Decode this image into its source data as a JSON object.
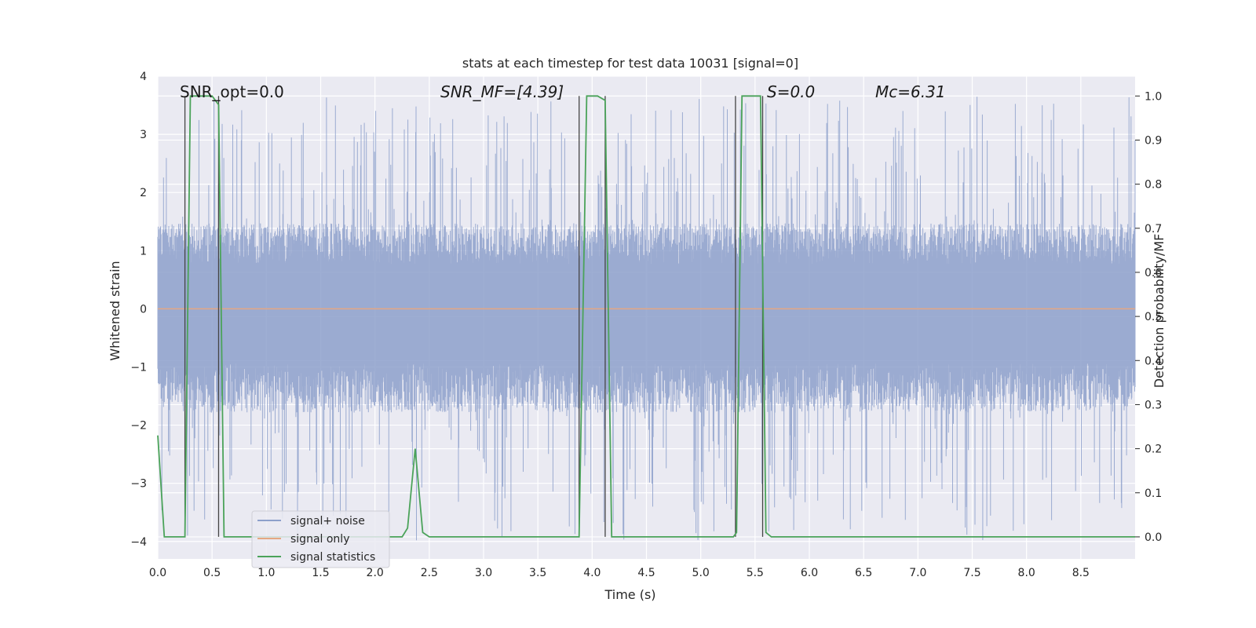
{
  "chart_data": {
    "type": "line",
    "title": "stats at each timestep for test data 10031 [signal=0]",
    "xlabel": "Time (s)",
    "ylabel_left": "Whitened strain",
    "ylabel_right": "Detection probability/MF",
    "xlim": [
      0,
      9.0
    ],
    "ylim_left": [
      -4.3,
      4.0
    ],
    "ylim_right": [
      -0.05,
      1.045
    ],
    "x_ticks": [
      0.0,
      0.5,
      1.0,
      1.5,
      2.0,
      2.5,
      3.0,
      3.5,
      4.0,
      4.5,
      5.0,
      5.5,
      6.0,
      6.5,
      7.0,
      7.5,
      8.0,
      8.5
    ],
    "x_tick_labels": [
      "0.0",
      "0.5",
      "1.0",
      "1.5",
      "2.0",
      "2.5",
      "3.0",
      "3.5",
      "4.0",
      "4.5",
      "5.0",
      "5.5",
      "6.0",
      "6.5",
      "7.0",
      "7.5",
      "8.0",
      "8.5"
    ],
    "y_left_ticks": [
      4,
      3,
      2,
      1,
      0,
      -1,
      -2,
      -3,
      -4
    ],
    "y_left_tick_labels": [
      "4",
      "3",
      "2",
      "1",
      "0",
      "−1",
      "−2",
      "−3",
      "−4"
    ],
    "y_right_ticks": [
      1.0,
      0.9,
      0.8,
      0.7,
      0.6,
      0.5,
      0.4,
      0.3,
      0.2,
      0.1,
      0.0
    ],
    "y_right_tick_labels": [
      "1.0",
      "0.9",
      "0.8",
      "0.7",
      "0.6",
      "0.5",
      "0.4",
      "0.3",
      "0.2",
      "0.1",
      "0.0"
    ],
    "grid": true,
    "legend_placement": "lower-left",
    "legend": [
      {
        "label": "signal+ noise",
        "color": "#8da0cb"
      },
      {
        "label": "signal only",
        "color": "#e5a782"
      },
      {
        "label": "signal statistics",
        "color": "#4ba35a"
      }
    ],
    "series": [
      {
        "name": "signal+ noise",
        "axis": "left",
        "color": "#8da0cb",
        "description_values": {
          "typical_band": [
            -1.7,
            1.4
          ],
          "peak_max": 3.65,
          "peak_min": -4.0
        }
      },
      {
        "name": "signal only",
        "axis": "left",
        "color": "#e5a782",
        "x": [
          0.0,
          9.0
        ],
        "y": [
          0.0,
          0.0
        ]
      },
      {
        "name": "signal statistics",
        "axis": "right",
        "color": "#4ba35a",
        "x": [
          0.0,
          0.06,
          0.25,
          0.3,
          0.5,
          0.56,
          0.61,
          0.65,
          1.5,
          1.85,
          1.95,
          2.0,
          2.25,
          2.3,
          2.37,
          2.44,
          2.5,
          2.7,
          2.8,
          3.88,
          3.95,
          4.05,
          4.12,
          4.18,
          5.3,
          5.33,
          5.38,
          5.55,
          5.6,
          5.65,
          9.0
        ],
        "y": [
          0.23,
          0.0,
          0.0,
          1.0,
          1.0,
          0.98,
          0.0,
          0.0,
          0.0,
          0.0,
          0.0,
          0.0,
          0.0,
          0.02,
          0.2,
          0.01,
          0.0,
          0.0,
          0.0,
          0.0,
          1.0,
          1.0,
          0.99,
          0.0,
          0.0,
          0.01,
          1.0,
          1.0,
          0.01,
          0.0,
          0.0
        ]
      }
    ],
    "vertical_markers": [
      0.25,
      0.56,
      3.88,
      4.12,
      5.32,
      5.57
    ],
    "annotations": [
      {
        "key": "snr_opt",
        "text": "SNR_opt=0.0",
        "x": 0.2,
        "y": 3.65
      },
      {
        "key": "snr_mf",
        "text": "SNR_MF=[4.39]",
        "x": 2.6,
        "y": 3.65
      },
      {
        "key": "s",
        "text": "S=0.0",
        "x": 5.6,
        "y": 3.65
      },
      {
        "key": "mc",
        "text": "Mc=6.31",
        "x": 6.6,
        "y": 3.65
      }
    ],
    "colors": {
      "background": "#eaeaf2",
      "grid": "#ffffff",
      "marker": "#444444"
    }
  }
}
